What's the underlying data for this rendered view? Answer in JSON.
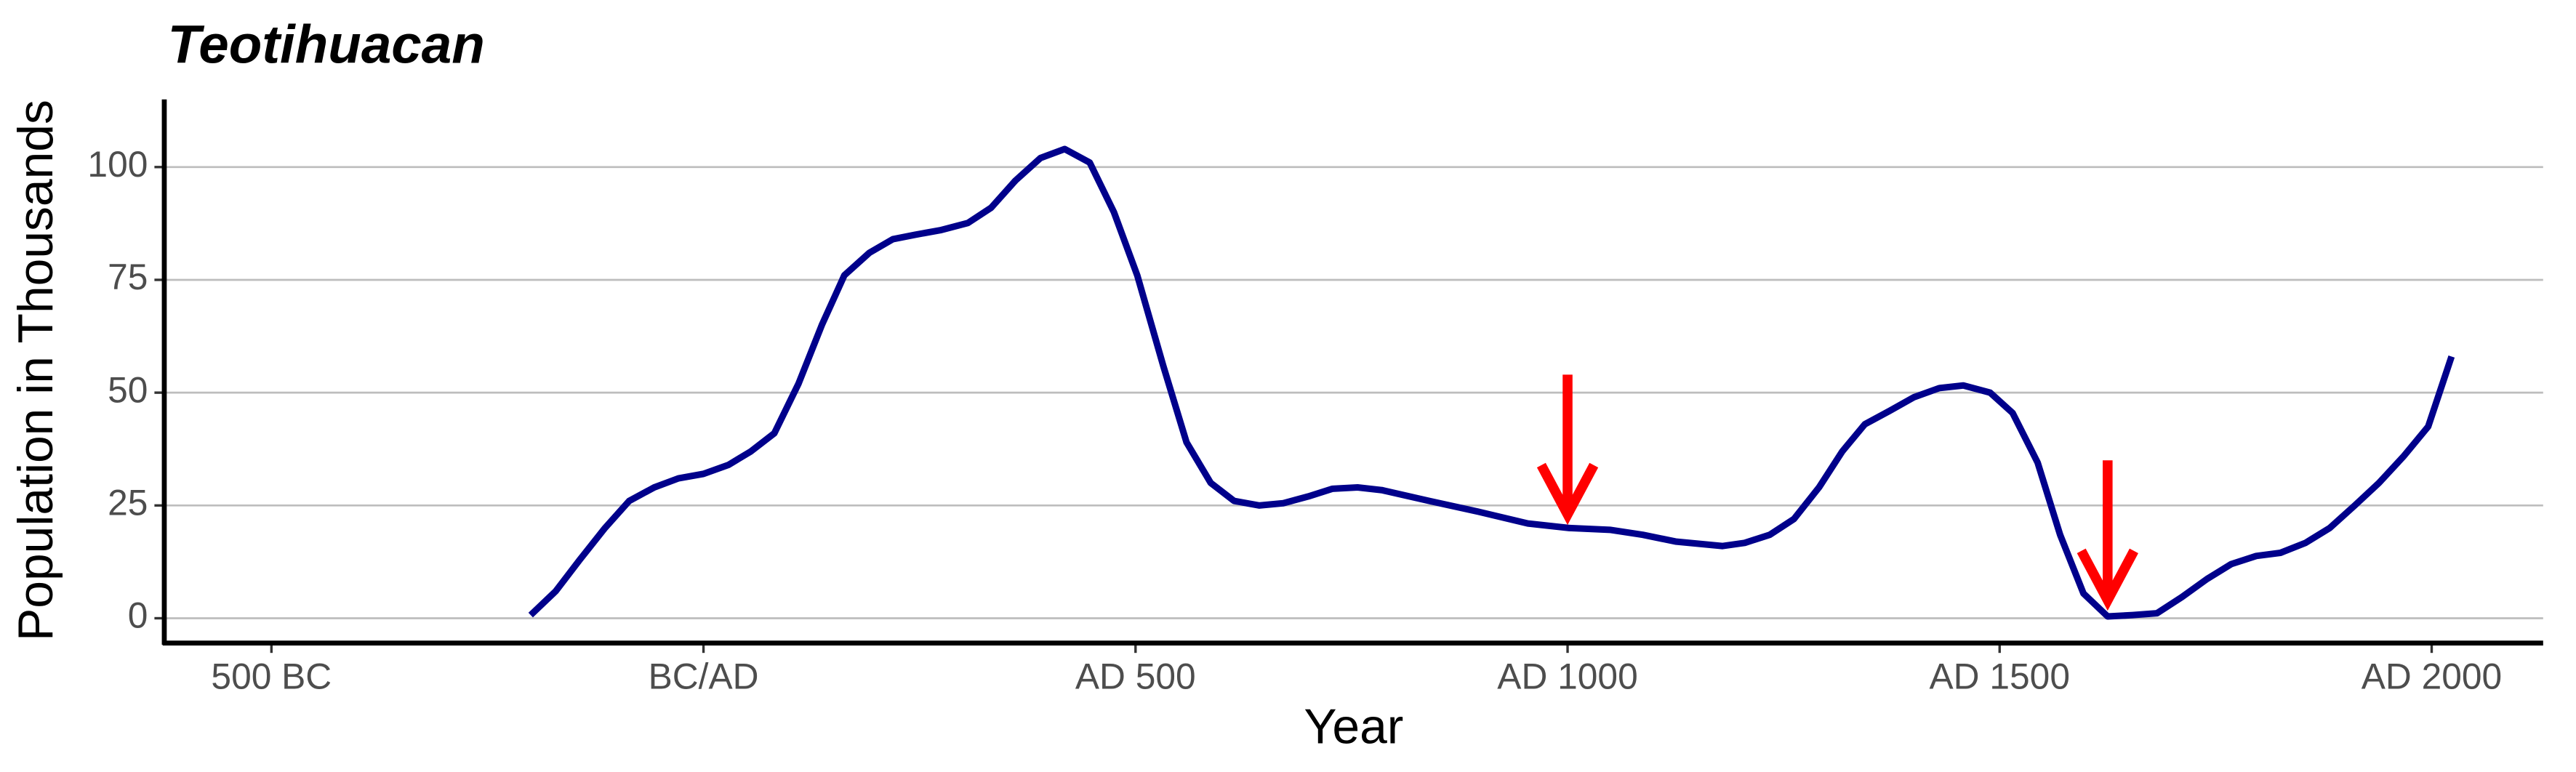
{
  "chart_data": {
    "type": "line",
    "title": "Teotihuacan",
    "x_label": "Year",
    "y_label": "Population in Thousands",
    "x": [
      -200,
      -171,
      -143,
      -114,
      -86,
      -57,
      -29,
      0,
      29,
      55,
      82,
      110,
      137,
      163,
      192,
      219,
      245,
      274,
      306,
      333,
      361,
      390,
      418,
      447,
      475,
      502,
      532,
      559,
      587,
      614,
      643,
      671,
      700,
      728,
      757,
      785,
      840,
      897,
      954,
      1002,
      1049,
      1087,
      1125,
      1179,
      1205,
      1234,
      1262,
      1291,
      1318,
      1344,
      1373,
      1401,
      1430,
      1458,
      1489,
      1515,
      1544,
      1570,
      1597,
      1625,
      1654,
      1682,
      1711,
      1740,
      1768,
      1797,
      1825,
      1854,
      1882,
      1911,
      1939,
      1968,
      1996,
      2023
    ],
    "series": [
      {
        "name": "Population",
        "color": "#00008b",
        "values": [
          0.7,
          6,
          13,
          20,
          26,
          29,
          31,
          32,
          34,
          37,
          41,
          52,
          65,
          76,
          81,
          84,
          85,
          86,
          87.6,
          91,
          97,
          102,
          104,
          101,
          90,
          76,
          56,
          39,
          30,
          26,
          25,
          25.5,
          27,
          28.7,
          29,
          28.4,
          26,
          23.6,
          21,
          20,
          19.6,
          18.5,
          17,
          16,
          16.7,
          18.5,
          22,
          29,
          37,
          43,
          46,
          49,
          51,
          51.6,
          50,
          45.5,
          34.5,
          18.5,
          5.5,
          0.4,
          0.7,
          1.1,
          4.7,
          8.7,
          12,
          13.8,
          14.5,
          16.7,
          20,
          25,
          30,
          36,
          42.5,
          58
        ]
      }
    ],
    "arrows": {
      "color": "#ff0000",
      "x": [
        1000,
        1625
      ],
      "from": [
        54,
        35
      ],
      "to": [
        23,
        4
      ]
    },
    "xlim": [
      -624,
      2129
    ],
    "ylim": [
      -5.5,
      115
    ],
    "xticks": [
      {
        "value": -500,
        "label": "500 BC"
      },
      {
        "value": 0,
        "label": "BC/AD"
      },
      {
        "value": 500,
        "label": "AD 500"
      },
      {
        "value": 1000,
        "label": "AD 1000"
      },
      {
        "value": 1500,
        "label": "AD 1500"
      },
      {
        "value": 2000,
        "label": "AD 2000"
      }
    ],
    "yticks": [
      0,
      25,
      50,
      75,
      100
    ],
    "grid": true
  }
}
